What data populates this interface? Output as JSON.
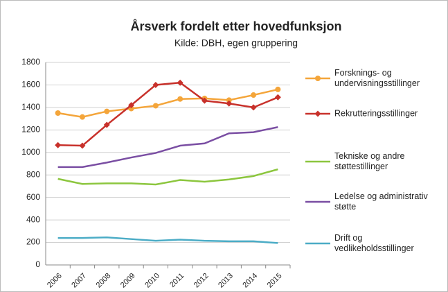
{
  "chart_data": {
    "type": "line",
    "title": "Årsverk fordelt etter hovedfunksjon",
    "subtitle": "Kilde: DBH, egen gruppering",
    "categories": [
      "2006",
      "2007",
      "2008",
      "2009",
      "2010",
      "2011",
      "2012",
      "2013",
      "2014",
      "2015"
    ],
    "series": [
      {
        "name": "Forsknings- og undervisningsstillinger",
        "color": "#f4a53a",
        "marker": "circle",
        "values": [
          1350,
          1315,
          1365,
          1390,
          1415,
          1475,
          1480,
          1465,
          1510,
          1560
        ]
      },
      {
        "name": "Rekrutteringsstillinger",
        "color": "#c8312b",
        "marker": "diamond",
        "values": [
          1065,
          1060,
          1245,
          1420,
          1600,
          1620,
          1460,
          1435,
          1400,
          1490
        ]
      },
      {
        "name": "Tekniske og andre støttestillinger",
        "color": "#8cc63e",
        "marker": null,
        "values": [
          765,
          720,
          725,
          725,
          715,
          755,
          740,
          760,
          790,
          850
        ]
      },
      {
        "name": "Ledelse og administrativ støtte",
        "color": "#7a4ea3",
        "marker": null,
        "values": [
          870,
          870,
          910,
          955,
          995,
          1060,
          1080,
          1170,
          1180,
          1225
        ]
      },
      {
        "name": "Drift og vedlikeholdsstillinger",
        "color": "#4bacc6",
        "marker": null,
        "values": [
          240,
          240,
          245,
          230,
          215,
          225,
          215,
          210,
          210,
          195
        ]
      }
    ],
    "ylim": [
      0,
      1800
    ],
    "yticks": [
      0,
      200,
      400,
      600,
      800,
      1000,
      1200,
      1400,
      1600,
      1800
    ],
    "grid": true,
    "legend": "right"
  }
}
